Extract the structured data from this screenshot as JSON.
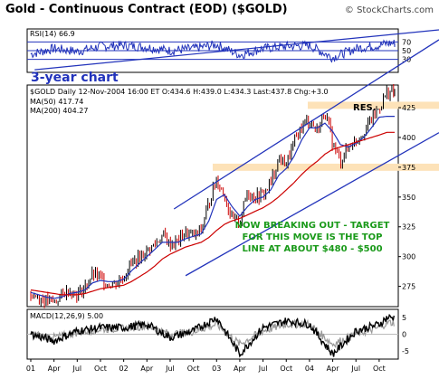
{
  "header": {
    "title": "Gold - Continuous Contract (EOD) ($GOLD)",
    "copyright": "© StockCharts.com"
  },
  "colors": {
    "price_up": "#000000",
    "price_down": "#cc0000",
    "ma50": "#2233bb",
    "ma200": "#cc0000",
    "trendline": "#2233bb",
    "zone": "#fde2b8",
    "annotation": "#1a9a1a",
    "rsi_line": "#2233bb",
    "macd_line": "#000000",
    "macd_signal": "#999999"
  },
  "chart_data": [
    {
      "type": "line",
      "panel": "rsi",
      "label": "RSI(14) 66.9",
      "ylim": [
        0,
        100
      ],
      "yticks": [
        30,
        50,
        70
      ],
      "reference_lines": [
        30,
        50,
        70
      ],
      "x": [
        "2001-01",
        "2001-04",
        "2001-07",
        "2001-10",
        "2002-01",
        "2002-04",
        "2002-07",
        "2002-10",
        "2003-01",
        "2003-04",
        "2003-07",
        "2003-10",
        "2004-01",
        "2004-04",
        "2004-07",
        "2004-10",
        "2004-11"
      ],
      "values": [
        42,
        55,
        48,
        60,
        62,
        58,
        50,
        55,
        64,
        40,
        55,
        60,
        62,
        34,
        55,
        62,
        66.9
      ],
      "annotation": "3-year chart"
    },
    {
      "type": "line",
      "panel": "price",
      "subtitle": "$GOLD Daily 12-Nov-2004 16:00 ET  O:434.6  H:439.0  L:434.3  Last:437.8  Chg:+3.0",
      "legend": [
        {
          "name": "MA(50) 417.74",
          "color": "#2233bb"
        },
        {
          "name": "MA(200) 404.27",
          "color": "#cc0000"
        }
      ],
      "ylim": [
        258,
        444
      ],
      "yticks": [
        275,
        300,
        325,
        350,
        375,
        400,
        425
      ],
      "x": [
        "2001-01",
        "2001-02",
        "2001-03",
        "2001-04",
        "2001-05",
        "2001-06",
        "2001-07",
        "2001-08",
        "2001-09",
        "2001-10",
        "2001-11",
        "2001-12",
        "2002-01",
        "2002-02",
        "2002-03",
        "2002-04",
        "2002-05",
        "2002-06",
        "2002-07",
        "2002-08",
        "2002-09",
        "2002-10",
        "2002-11",
        "2002-12",
        "2003-01",
        "2003-02",
        "2003-03",
        "2003-04",
        "2003-05",
        "2003-06",
        "2003-07",
        "2003-08",
        "2003-09",
        "2003-10",
        "2003-11",
        "2003-12",
        "2004-01",
        "2004-02",
        "2004-03",
        "2004-04",
        "2004-05",
        "2004-06",
        "2004-07",
        "2004-08",
        "2004-09",
        "2004-10",
        "2004-11"
      ],
      "series": [
        {
          "name": "Price",
          "values": [
            268,
            266,
            263,
            262,
            268,
            272,
            268,
            274,
            285,
            282,
            277,
            278,
            283,
            295,
            298,
            305,
            310,
            318,
            310,
            313,
            320,
            317,
            322,
            345,
            365,
            352,
            330,
            330,
            355,
            350,
            352,
            362,
            382,
            378,
            395,
            410,
            415,
            405,
            422,
            395,
            380,
            392,
            398,
            405,
            415,
            425,
            437.8
          ]
        },
        {
          "name": "MA(50)",
          "values": [
            270,
            268,
            266,
            265,
            266,
            269,
            270,
            272,
            278,
            280,
            279,
            279,
            281,
            288,
            294,
            300,
            306,
            312,
            312,
            312,
            315,
            317,
            319,
            330,
            348,
            352,
            342,
            334,
            342,
            348,
            350,
            356,
            368,
            374,
            384,
            398,
            408,
            408,
            412,
            405,
            394,
            392,
            395,
            400,
            408,
            417,
            417.74
          ]
        },
        {
          "name": "MA(200)",
          "values": [
            272,
            271,
            270,
            269,
            268,
            268,
            268,
            269,
            271,
            273,
            274,
            275,
            276,
            279,
            283,
            287,
            292,
            298,
            302,
            305,
            308,
            310,
            312,
            316,
            322,
            327,
            330,
            332,
            335,
            338,
            341,
            345,
            350,
            356,
            362,
            369,
            375,
            380,
            386,
            390,
            392,
            394,
            396,
            398,
            400,
            402,
            404.27
          ]
        }
      ],
      "resistance_zones": [
        {
          "label": "RES.",
          "from": 424,
          "to": 430
        },
        {
          "label": "",
          "from": 372,
          "to": 378
        }
      ],
      "annotation": "NOW BREAKING OUT - TARGET FOR THIS MOVE IS THE TOP LINE AT ABOUT $480 - $500"
    },
    {
      "type": "line",
      "panel": "macd",
      "label": "MACD(12,26,9) 5.00",
      "ylim": [
        -7.5,
        7.5
      ],
      "yticks": [
        -5,
        0,
        5
      ],
      "x": [
        "2001-01",
        "2001-04",
        "2001-07",
        "2001-10",
        "2002-01",
        "2002-04",
        "2002-07",
        "2002-10",
        "2003-01",
        "2003-04",
        "2003-07",
        "2003-10",
        "2004-01",
        "2004-04",
        "2004-07",
        "2004-10",
        "2004-11"
      ],
      "series": [
        {
          "name": "MACD",
          "values": [
            0,
            -2,
            1,
            2,
            2,
            3,
            -1,
            1,
            5,
            -6,
            2,
            4,
            3,
            -6,
            1,
            3,
            5
          ]
        },
        {
          "name": "Signal",
          "values": [
            0,
            -1,
            0.5,
            1.5,
            1.8,
            2.5,
            0,
            0.8,
            3,
            -3,
            1,
            3,
            3,
            -3,
            0,
            2,
            3.5
          ]
        }
      ]
    }
  ],
  "x_axis": {
    "tick_labels": [
      "01",
      "Apr",
      "Jul",
      "Oct",
      "02",
      "Apr",
      "Jul",
      "Oct",
      "03",
      "Apr",
      "Jul",
      "Oct",
      "04",
      "Apr",
      "Jul",
      "Oct"
    ]
  }
}
